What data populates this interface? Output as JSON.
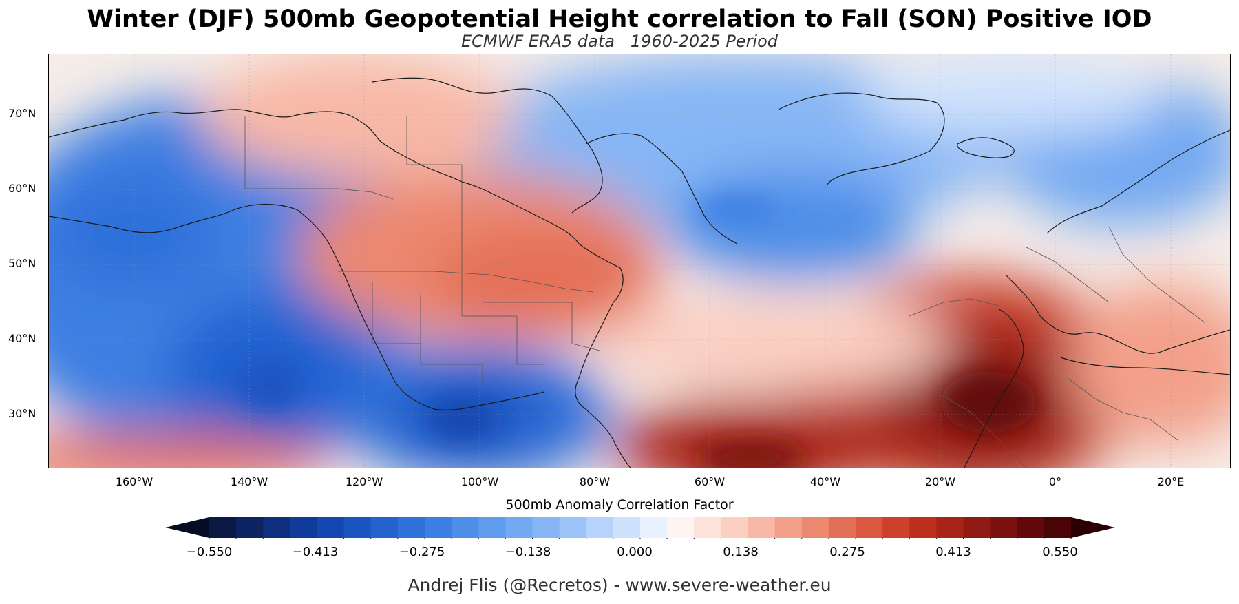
{
  "header": {
    "title": "Winter (DJF) 500mb Geopotential Height correlation to Fall (SON) Positive IOD",
    "subtitle": "ECMWF ERA5 data   1960-2025 Period"
  },
  "map": {
    "lat_labels": [
      "70°N",
      "60°N",
      "50°N",
      "40°N",
      "30°N"
    ],
    "lon_labels": [
      "160°W",
      "140°W",
      "120°W",
      "100°W",
      "80°W",
      "60°W",
      "40°W",
      "20°W",
      "0°",
      "20°E"
    ],
    "extent": {
      "lon_min": -175,
      "lon_max": 30,
      "lat_min": 23,
      "lat_max": 78
    }
  },
  "colorbar": {
    "title": "500mb Anomaly Correlation Factor",
    "tick_labels": [
      "−0.550",
      "−0.413",
      "−0.275",
      "−0.138",
      "0.000",
      "0.138",
      "0.275",
      "0.413",
      "0.550"
    ],
    "range": [
      -0.55,
      0.55
    ],
    "colors": [
      "#0a1a45",
      "#0c2462",
      "#0e2f7d",
      "#103b98",
      "#1547b0",
      "#1b55c2",
      "#2462d0",
      "#2f70da",
      "#3d7fe2",
      "#4d8ee8",
      "#5f9cee",
      "#72a9f2",
      "#86b6f5",
      "#9dc4f8",
      "#b6d3fb",
      "#cfe2fd",
      "#e8f1ff",
      "#fff4f0",
      "#fde2da",
      "#fbcfc2",
      "#f8b8a6",
      "#f3a08a",
      "#ec8870",
      "#e46f57",
      "#da5740",
      "#cd402c",
      "#bd301e",
      "#a82417",
      "#911a12",
      "#7a120e",
      "#62090a",
      "#4a0406"
    ],
    "ext_low_color": "#050d26",
    "ext_high_color": "#2b0002"
  },
  "credit": "Andrej Flis (@Recretos) - www.severe-weather.eu"
}
